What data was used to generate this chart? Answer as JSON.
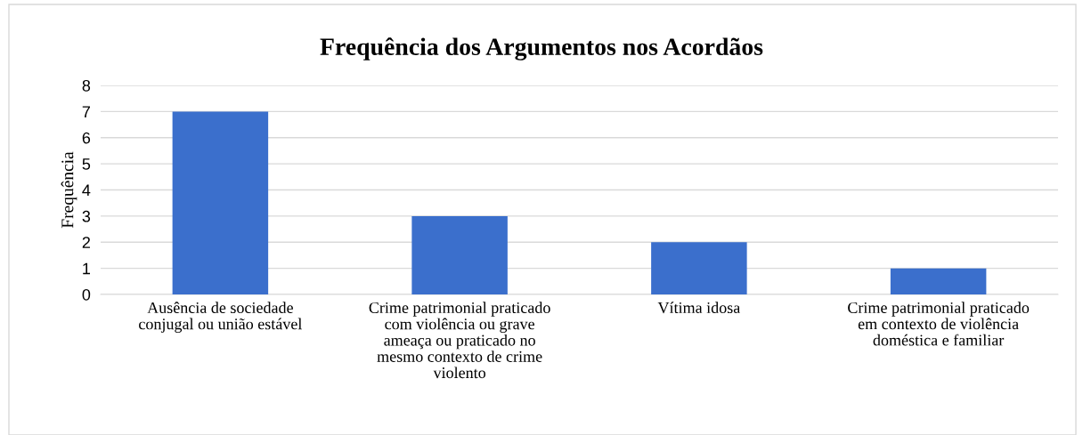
{
  "chart_data": {
    "type": "bar",
    "title": "Frequência dos Argumentos nos Acordãos",
    "ylabel": "Frequência",
    "categories": [
      "Ausência de sociedade\nconjugal ou união estável",
      "Crime patrimonial praticado\ncom violência ou grave\nameaça ou praticado no\nmesmo contexto de crime\nviolento",
      "Vítima idosa",
      "Crime patrimonial praticado\nem contexto de violência\ndoméstica e familiar"
    ],
    "values": [
      7,
      3,
      2,
      1
    ],
    "color": "#3b6fcc",
    "ylim": [
      0,
      8
    ],
    "yticks": [
      0,
      1,
      2,
      3,
      4,
      5,
      6,
      7,
      8
    ],
    "grid": "y",
    "legend": false
  }
}
